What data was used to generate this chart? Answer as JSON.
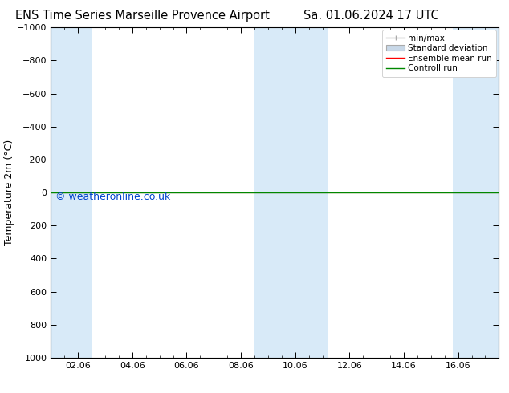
{
  "title_left": "ENS Time Series Marseille Provence Airport",
  "title_right": "Sa. 01.06.2024 17 UTC",
  "ylabel": "Temperature 2m (°C)",
  "watermark": "© weatheronline.co.uk",
  "watermark_color": "#0044cc",
  "ylim_top": -1000,
  "ylim_bottom": 1000,
  "yticks": [
    -1000,
    -800,
    -600,
    -400,
    -200,
    0,
    200,
    400,
    600,
    800,
    1000
  ],
  "xtick_labels": [
    "02.06",
    "04.06",
    "06.06",
    "08.06",
    "10.06",
    "12.06",
    "14.06",
    "16.06"
  ],
  "xtick_positions": [
    1,
    3,
    5,
    7,
    9,
    11,
    13,
    15
  ],
  "xmin": 0,
  "xmax": 16.5,
  "blue_band_positions": [
    [
      0.0,
      1.5
    ],
    [
      7.5,
      8.5
    ],
    [
      8.5,
      10.2
    ],
    [
      14.8,
      16.5
    ]
  ],
  "blue_band_color": "#d8eaf8",
  "ensemble_mean_color": "#ff0000",
  "control_run_color": "#008800",
  "line_y_value": 0,
  "legend_labels": [
    "min/max",
    "Standard deviation",
    "Ensemble mean run",
    "Controll run"
  ],
  "background_color": "#ffffff",
  "title_fontsize": 10.5,
  "label_fontsize": 9,
  "tick_fontsize": 8,
  "watermark_fontsize": 9
}
